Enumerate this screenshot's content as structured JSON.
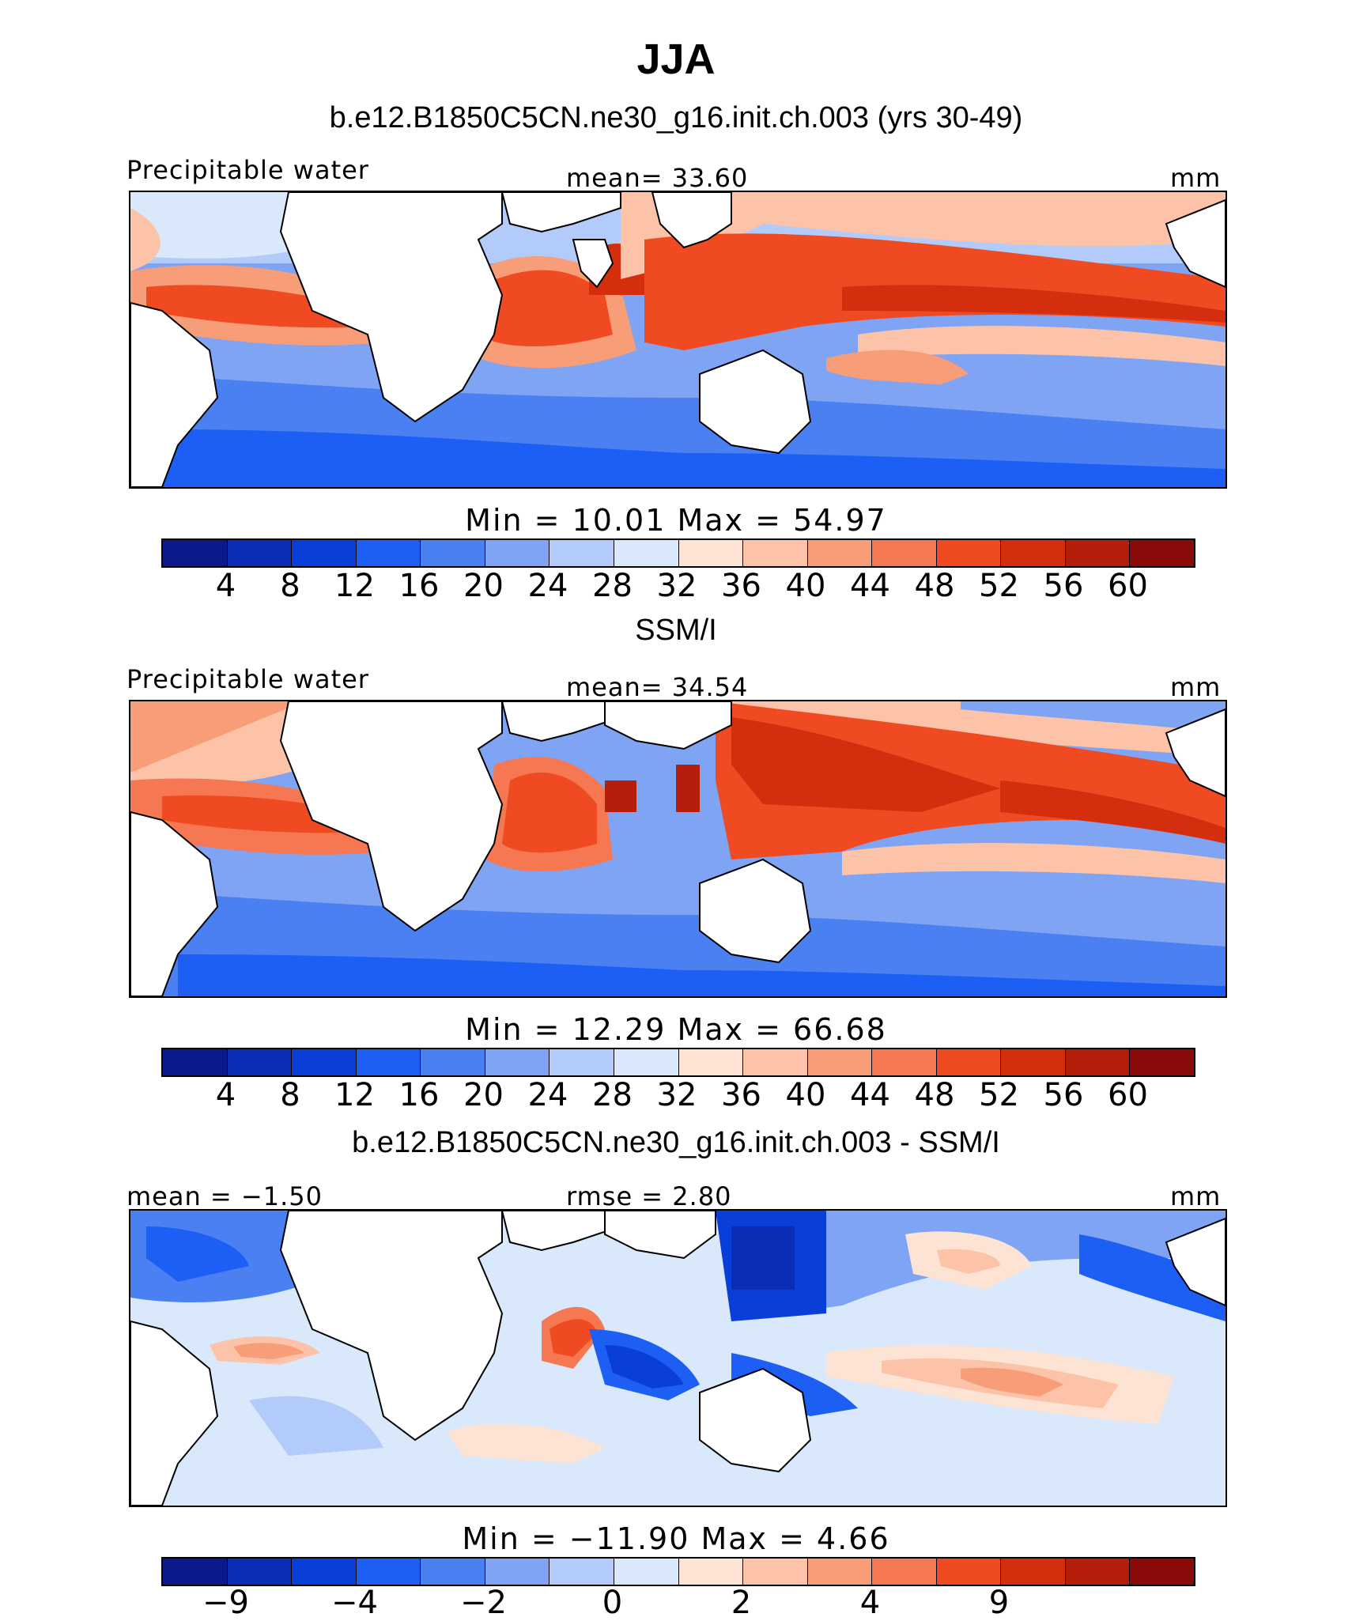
{
  "title": "JJA",
  "panels": [
    {
      "id": "model",
      "title": "b.e12.B1850C5CN.ne30_g16.init.ch.003 (yrs 30-49)",
      "left_label": "Precipitable water",
      "center_label": "mean=   33.60",
      "right_label": "mm",
      "stats": "Min  =   10.01  Max  =   54.97",
      "colorbar_colors": [
        "#0a1a8a",
        "#0b2db5",
        "#0a3ed9",
        "#1d5ff5",
        "#4a80f2",
        "#7fa4f4",
        "#b3cbfa",
        "#d9e8fb",
        "#fde3d3",
        "#fcc3a9",
        "#f79d77",
        "#f57852",
        "#ef4a22",
        "#d52e0e",
        "#b51e0a",
        "#8a0a0a"
      ],
      "colorbar_ticks": [
        "4",
        "8",
        "12",
        "16",
        "20",
        "24",
        "28",
        "32",
        "36",
        "40",
        "44",
        "48",
        "52",
        "56",
        "60"
      ]
    },
    {
      "id": "obs",
      "title": "SSM/I",
      "left_label": "Precipitable water",
      "center_label": "mean=   34.54",
      "right_label": "mm",
      "stats": "Min  =   12.29  Max  =   66.68",
      "colorbar_colors": [
        "#0a1a8a",
        "#0b2db5",
        "#0a3ed9",
        "#1d5ff5",
        "#4a80f2",
        "#7fa4f4",
        "#b3cbfa",
        "#d9e8fb",
        "#fde3d3",
        "#fcc3a9",
        "#f79d77",
        "#f57852",
        "#ef4a22",
        "#d52e0e",
        "#b51e0a",
        "#8a0a0a"
      ],
      "colorbar_ticks": [
        "4",
        "8",
        "12",
        "16",
        "20",
        "24",
        "28",
        "32",
        "36",
        "40",
        "44",
        "48",
        "52",
        "56",
        "60"
      ]
    },
    {
      "id": "diff",
      "title": "b.e12.B1850C5CN.ne30_g16.init.ch.003 - SSM/I",
      "left_label": "mean  =  −1.50",
      "center_label": "rmse  =    2.80",
      "right_label": "mm",
      "stats": "Min  =  −11.90  Max  =     4.66",
      "colorbar_colors": [
        "#0a1a8a",
        "#0b2db5",
        "#0a3ed9",
        "#1d5ff5",
        "#4a80f2",
        "#7fa4f4",
        "#b3cbfa",
        "#d9e8fb",
        "#fde3d3",
        "#fcc3a9",
        "#f79d77",
        "#f57852",
        "#ef4a22",
        "#d52e0e",
        "#b51e0a",
        "#8a0a0a"
      ],
      "colorbar_ticks": [
        "−9",
        "",
        "−4",
        "",
        "−2",
        "",
        "0",
        "",
        "2",
        "",
        "4",
        "",
        "9",
        ""
      ]
    }
  ],
  "colors": {
    "land": "#ffffff",
    "coast": "#000000"
  }
}
